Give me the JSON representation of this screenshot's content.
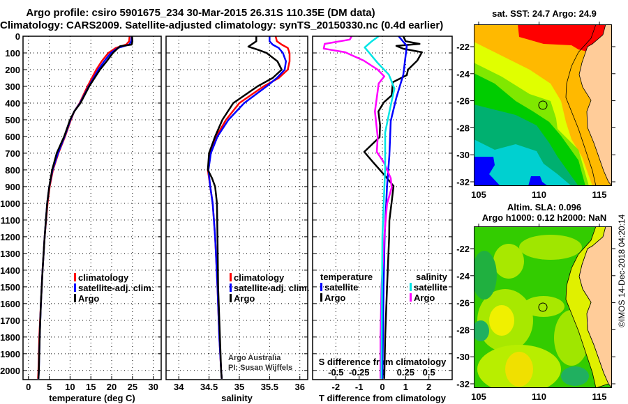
{
  "titles": {
    "line1": "Argo profile: csiro 5901675_234 30-Mar-2015 26.31S 110.35E (DM data)",
    "line2": "Climatology: CARS2009. Satellite-adjusted climatology: synTS_20150330.nc (0.4d earlier)"
  },
  "colors": {
    "climatology": "#ff0000",
    "satellite": "#0000ff",
    "argo": "#000000",
    "sal_satellite": "#00e5e5",
    "sal_argo": "#ff00ff"
  },
  "chart_data": [
    {
      "type": "line",
      "id": "temperature",
      "xlabel": "temperature (deg C)",
      "ylabel": "",
      "xlim": [
        -1.3,
        31.9
      ],
      "ylim": [
        0,
        2055
      ],
      "y_inverted": true,
      "grid": true,
      "xticks": [
        0,
        5,
        10,
        15,
        20,
        25,
        30
      ],
      "xtick_labels": [
        "0",
        "5",
        "10",
        "15",
        "20",
        "25",
        "30"
      ],
      "yticks": [
        0,
        100,
        200,
        300,
        400,
        500,
        600,
        700,
        800,
        900,
        1000,
        1100,
        1200,
        1300,
        1400,
        1500,
        1600,
        1700,
        1800,
        1900,
        2000
      ],
      "ytick_labels": [
        "0",
        "100",
        "200",
        "300",
        "400",
        "500",
        "600",
        "700",
        "800",
        "900",
        "1000",
        "1100",
        "1200",
        "1300",
        "1400",
        "1500",
        "1600",
        "1700",
        "1800",
        "1900",
        "2000"
      ],
      "legend": [
        {
          "label": "climatology",
          "color": "#ff0000"
        },
        {
          "label": "satellite-adj. clim.",
          "color": "#0000ff"
        },
        {
          "label": "Argo",
          "color": "#000000"
        }
      ],
      "series": [
        {
          "name": "climatology",
          "color": "#ff0000",
          "depth": [
            0,
            30,
            50,
            70,
            100,
            150,
            200,
            300,
            400,
            450,
            500,
            600,
            700,
            800,
            900,
            1000,
            1200,
            1400,
            1600,
            1800,
            2000,
            2050
          ],
          "values": [
            24.3,
            24.2,
            23.5,
            21,
            19.2,
            17.6,
            16.3,
            14.2,
            12.3,
            11.0,
            10.2,
            8.8,
            7.2,
            5.9,
            5.1,
            4.6,
            3.9,
            3.4,
            3.0,
            2.6,
            2.4,
            2.3
          ]
        },
        {
          "name": "satellite-adj. clim.",
          "color": "#0000ff",
          "depth": [
            0,
            30,
            50,
            70,
            100,
            150,
            200,
            300,
            400,
            450,
            500,
            600,
            700,
            800,
            900,
            1000,
            1200,
            1400,
            1600,
            1800,
            2000,
            2050
          ],
          "values": [
            24.8,
            24.7,
            24.2,
            21.5,
            19.8,
            18.2,
            16.8,
            14.5,
            12.4,
            11.0,
            10.1,
            8.7,
            7.1,
            5.8,
            5.0,
            4.5,
            3.9,
            3.4,
            3.0,
            2.7,
            2.5,
            2.4
          ]
        },
        {
          "name": "Argo",
          "color": "#000000",
          "depth": [
            0,
            30,
            50,
            60,
            100,
            150,
            200,
            300,
            400,
            450,
            500,
            600,
            700,
            800,
            900,
            1000,
            1200,
            1400,
            1600,
            1800,
            2000,
            2050
          ],
          "values": [
            24.9,
            25.0,
            24.8,
            22,
            20.3,
            18.8,
            17.2,
            14.6,
            12.5,
            11.0,
            10.0,
            8.6,
            6.8,
            5.7,
            5.0,
            4.5,
            3.9,
            3.4,
            3.0,
            2.7,
            2.5,
            2.4
          ]
        }
      ]
    },
    {
      "type": "line",
      "id": "salinity",
      "xlabel": "salinity",
      "xlim": [
        33.79,
        36.13
      ],
      "ylim": [
        0,
        2055
      ],
      "y_inverted": true,
      "grid": true,
      "xticks": [
        34,
        34.5,
        35,
        35.5,
        36
      ],
      "xtick_labels": [
        "34",
        "34.5",
        "35",
        "35.5",
        "36"
      ],
      "yticks": [
        0,
        100,
        200,
        300,
        400,
        500,
        600,
        700,
        800,
        900,
        1000,
        1100,
        1200,
        1300,
        1400,
        1500,
        1600,
        1700,
        1800,
        1900,
        2000
      ],
      "legend": [
        {
          "label": "climatology",
          "color": "#ff0000"
        },
        {
          "label": "satellite-adj. clim.",
          "color": "#0000ff"
        },
        {
          "label": "Argo",
          "color": "#000000"
        }
      ],
      "annotations": [
        "Argo Australia",
        "PI: Susan Wijffels"
      ],
      "series": [
        {
          "name": "climatology",
          "color": "#ff0000",
          "depth": [
            0,
            30,
            50,
            70,
            100,
            150,
            200,
            250,
            300,
            400,
            500,
            600,
            700,
            800,
            900,
            1000,
            1200,
            1500,
            1800,
            2000,
            2050
          ],
          "values": [
            35.6,
            35.62,
            35.7,
            35.8,
            35.83,
            35.83,
            35.8,
            35.65,
            35.4,
            35.0,
            34.78,
            34.62,
            34.52,
            34.48,
            34.52,
            34.56,
            34.6,
            34.64,
            34.67,
            34.7,
            34.71
          ]
        },
        {
          "name": "satellite-adj. clim.",
          "color": "#0000ff",
          "depth": [
            0,
            30,
            50,
            70,
            100,
            150,
            200,
            250,
            300,
            400,
            500,
            600,
            700,
            800,
            900,
            1000,
            1200,
            1500,
            1800,
            2000,
            2050
          ],
          "values": [
            35.5,
            35.5,
            35.55,
            35.65,
            35.72,
            35.77,
            35.75,
            35.62,
            35.45,
            35.08,
            34.82,
            34.64,
            34.53,
            34.49,
            34.52,
            34.56,
            34.6,
            34.64,
            34.67,
            34.7,
            34.71
          ]
        },
        {
          "name": "Argo",
          "color": "#000000",
          "depth": [
            0,
            30,
            50,
            62,
            80,
            100,
            150,
            200,
            250,
            300,
            400,
            500,
            600,
            700,
            800,
            850,
            900,
            1000,
            1200,
            1500,
            1800,
            2000,
            2050
          ],
          "values": [
            35.28,
            35.28,
            35.2,
            35.15,
            35.3,
            35.45,
            35.63,
            35.7,
            35.55,
            35.3,
            34.9,
            34.72,
            34.6,
            34.5,
            34.48,
            34.55,
            34.6,
            34.63,
            34.64,
            34.65,
            34.68,
            34.7,
            34.71
          ]
        }
      ]
    },
    {
      "type": "line",
      "id": "difference",
      "xlabel": "T difference from climatology",
      "x2label": "S difference from climatology",
      "xlim": [
        -3,
        3
      ],
      "x2lim": [
        -0.75,
        0.75
      ],
      "ylim": [
        0,
        2055
      ],
      "y_inverted": true,
      "grid": true,
      "xticks": [
        -2,
        -1,
        0,
        1,
        2
      ],
      "xtick_labels": [
        "-2",
        "-1",
        "0",
        "1",
        "2"
      ],
      "x2ticks": [
        -0.5,
        -0.25,
        0,
        0.25,
        0.5
      ],
      "x2tick_labels": [
        "-0.5",
        "-0.25",
        "0",
        "0.25",
        "0.5"
      ],
      "yticks": [
        0,
        100,
        200,
        300,
        400,
        500,
        600,
        700,
        800,
        900,
        1000,
        1100,
        1200,
        1300,
        1400,
        1500,
        1600,
        1700,
        1800,
        1900,
        2000
      ],
      "legend_temperature": {
        "heading": "temperature",
        "items": [
          {
            "label": "satellite",
            "color": "#0000ff"
          },
          {
            "label": "Argo",
            "color": "#000000"
          }
        ]
      },
      "legend_salinity": {
        "heading": "salinity",
        "items": [
          {
            "label": "satellite",
            "color": "#00e5e5"
          },
          {
            "label": "Argo",
            "color": "#ff00ff"
          }
        ]
      },
      "series": [
        {
          "name": "T Argo",
          "axis": "T",
          "color": "#000000",
          "depth": [
            0,
            30,
            46,
            58,
            75,
            96,
            146,
            200,
            233,
            275,
            354,
            396,
            450,
            533,
            604,
            692,
            754,
            817,
            896,
            992,
            1104,
            1200,
            1500,
            1800,
            2050
          ],
          "values": [
            0.9,
            1.0,
            1.6,
            0.6,
            0.9,
            1.7,
            1.5,
            1.1,
            1.05,
            0.45,
            0.4,
            0.06,
            -0.17,
            -0.1,
            -0.12,
            -0.78,
            -0.4,
            0,
            0.48,
            0.4,
            0.3,
            0.29,
            0.2,
            0.12,
            0.08
          ]
        },
        {
          "name": "T satellite",
          "axis": "T",
          "color": "#0000ff",
          "depth": [
            0,
            58,
            230,
            368,
            507,
            715,
            896,
            1190,
            1500,
            2050
          ],
          "values": [
            0.7,
            1.05,
            0.9,
            0.6,
            0.36,
            0.3,
            0.2,
            0.1,
            0.05,
            0.0
          ]
        },
        {
          "name": "S Argo",
          "axis": "S",
          "color": "#ff00ff",
          "depth": [
            0,
            20,
            46,
            74,
            96,
            146,
            200,
            240,
            283,
            368,
            450,
            604,
            692,
            754,
            850,
            906,
            1003,
            1200,
            1500,
            1800,
            2050
          ],
          "values": [
            -0.33,
            -0.35,
            -0.62,
            -0.63,
            -0.4,
            -0.2,
            -0.05,
            0.02,
            -0.04,
            -0.06,
            -0.08,
            -0.05,
            -0.06,
            0.015,
            0.09,
            0.1,
            0.05,
            0.02,
            -0.01,
            -0.02,
            -0.02
          ]
        },
        {
          "name": "S satellite",
          "axis": "S",
          "color": "#00e5e5",
          "depth": [
            0,
            33,
            67,
            160,
            230,
            313,
            438,
            576,
            785,
            1200,
            2050
          ],
          "values": [
            -0.04,
            -0.12,
            -0.19,
            -0.05,
            0.07,
            0.13,
            0.08,
            0.03,
            0.03,
            0,
            -0.01
          ]
        }
      ]
    }
  ],
  "maps": {
    "sst": {
      "title": "sat. SST: 24.7 Argo: 24.9"
    },
    "sla": {
      "title1": "Altim. SLA: 0.096",
      "title2": "Argo h1000: 0.12 h2000: NaN"
    },
    "lat_labels": [
      "-22",
      "-24",
      "-26",
      "-28",
      "-30",
      "-32"
    ],
    "lon_labels": [
      "105",
      "110",
      "115"
    ],
    "float_position": {
      "lat": -26.31,
      "lon": 110.35
    }
  },
  "copyright": "©IMOS 14-Dec-2018 04:20:14"
}
